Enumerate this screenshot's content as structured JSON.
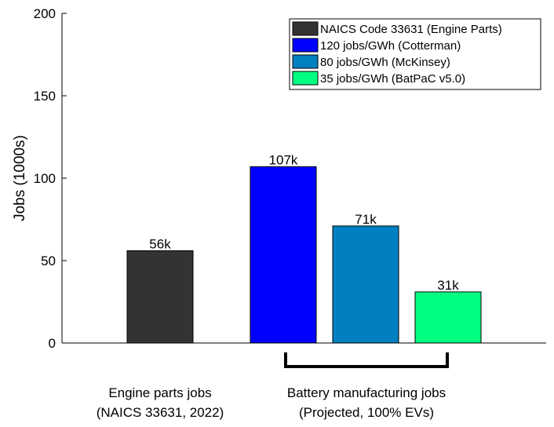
{
  "chart_data": {
    "type": "bar",
    "ylabel": "Jobs (1000s)",
    "ylim": [
      0,
      200
    ],
    "yticks": [
      0,
      50,
      100,
      150,
      200
    ],
    "grid": false,
    "legend_position": "top-right",
    "series": [
      {
        "name": "NAICS Code 33631 (Engine Parts)",
        "value": 56,
        "label": "56k",
        "color": "#333333"
      },
      {
        "name": "120 jobs/GWh (Cotterman)",
        "value": 107,
        "label": "107k",
        "color": "#0000ff"
      },
      {
        "name": "80 jobs/GWh (McKinsey)",
        "value": 71,
        "label": "71k",
        "color": "#0080c0"
      },
      {
        "name": "35 jobs/GWh (BatPaC v5.0)",
        "value": 31,
        "label": "31k",
        "color": "#00ff80"
      }
    ],
    "group_labels": [
      {
        "line1": "Engine parts jobs",
        "line2": "(NAICS 33631, 2022)"
      },
      {
        "line1": "Battery manufacturing jobs",
        "line2": "(Projected, 100% EVs)"
      }
    ]
  }
}
